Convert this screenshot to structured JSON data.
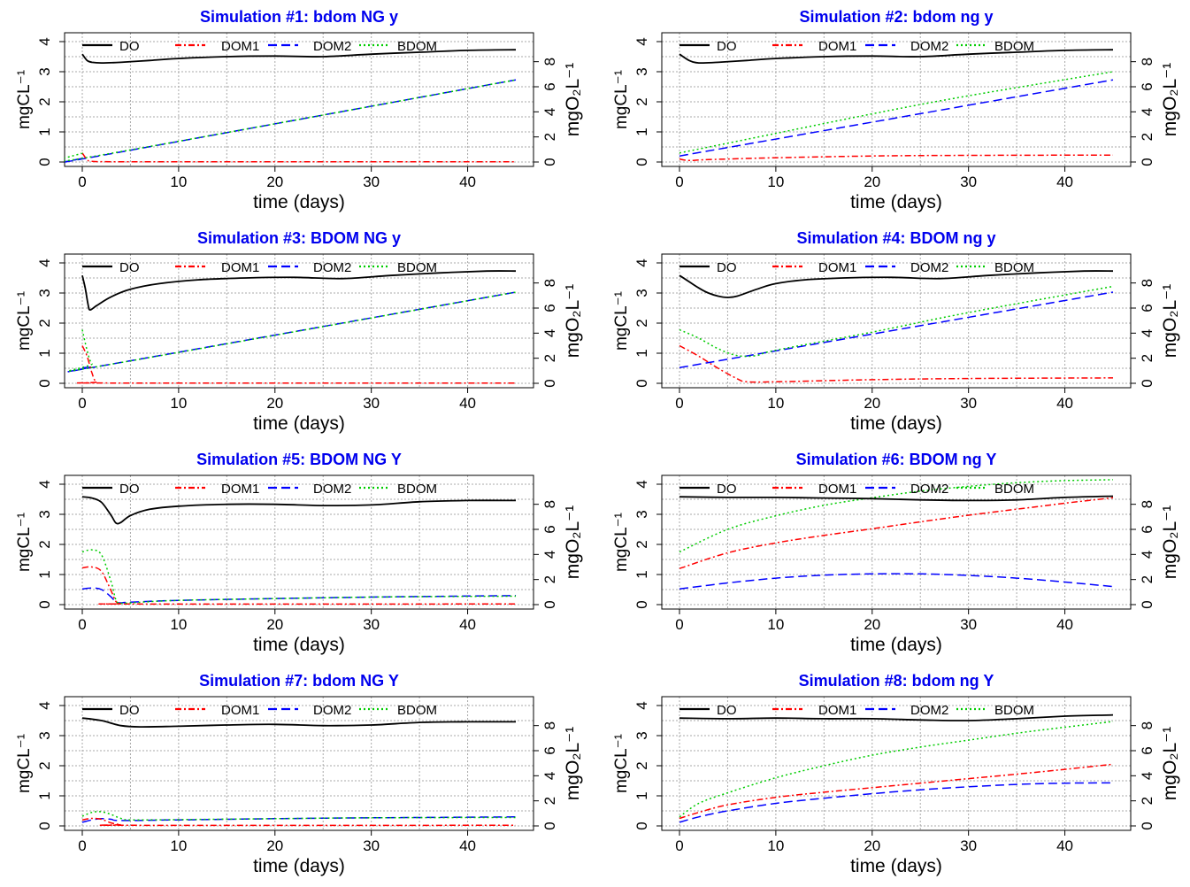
{
  "figure": {
    "legend_labels": [
      "DO",
      "DOM1",
      "DOM2",
      "BDOM"
    ],
    "xlabel": "time (days)",
    "ylabel_left": "mgCL⁻¹",
    "ylabel_right": "mgO₂L⁻¹",
    "colors": {
      "DO": "#000000",
      "DOM1": "#ff0000",
      "DOM2": "#0000ff",
      "BDOM": "#00cc00",
      "title": "#0000ee",
      "grid": "#aaaaaa"
    }
  },
  "chart_data": [
    {
      "type": "line",
      "title": "Simulation #1: bdom NG y",
      "xlabel": "time (days)",
      "ylabel": "mgCL⁻¹",
      "ylabel_right": "mgO₂L⁻¹",
      "xlim": [
        0,
        45
      ],
      "ylim": [
        0,
        4
      ],
      "ylim_right": [
        0,
        9.6
      ],
      "x_ticks": [
        0,
        10,
        20,
        30,
        40
      ],
      "y_ticks": [
        0,
        1,
        2,
        3,
        4
      ],
      "y_ticks_right": [
        0,
        2,
        4,
        6,
        8
      ],
      "legend": [
        "DO",
        "DOM1",
        "DOM2",
        "BDOM"
      ],
      "series": [
        {
          "name": "DO",
          "axis": "right",
          "x": [
            0,
            0.5,
            1,
            2,
            4,
            7,
            10,
            15,
            20,
            25,
            30,
            35,
            40,
            45
          ],
          "values": [
            8.6,
            8.1,
            7.95,
            7.9,
            7.95,
            8.1,
            8.25,
            8.4,
            8.45,
            8.4,
            8.6,
            8.75,
            8.9,
            8.95
          ]
        },
        {
          "name": "DOM1",
          "axis": "left",
          "x": [
            0,
            0.5,
            1,
            3,
            10,
            20,
            30,
            45
          ],
          "values": [
            0.3,
            0.08,
            0.02,
            0.01,
            0.01,
            0.01,
            0.01,
            0.01
          ]
        },
        {
          "name": "DOM2",
          "axis": "left",
          "x": [
            0,
            0.5,
            45
          ],
          "values": [
            0.12,
            0.13,
            2.73
          ]
        },
        {
          "name": "BDOM",
          "axis": "left",
          "x": [
            0,
            0.5,
            45
          ],
          "values": [
            0.3,
            0.15,
            2.73
          ]
        }
      ]
    },
    {
      "type": "line",
      "title": "Simulation #2: bdom ng y",
      "xlabel": "time (days)",
      "ylabel": "mgCL⁻¹",
      "ylabel_right": "mgO₂L⁻¹",
      "xlim": [
        0,
        45
      ],
      "ylim": [
        0,
        4
      ],
      "ylim_right": [
        0,
        9.6
      ],
      "x_ticks": [
        0,
        10,
        20,
        30,
        40
      ],
      "y_ticks": [
        0,
        1,
        2,
        3,
        4
      ],
      "y_ticks_right": [
        0,
        2,
        4,
        6,
        8
      ],
      "legend": [
        "DO",
        "DOM1",
        "DOM2",
        "BDOM"
      ],
      "series": [
        {
          "name": "DO",
          "axis": "right",
          "x": [
            0,
            1,
            2,
            4,
            7,
            10,
            15,
            20,
            25,
            30,
            35,
            40,
            45
          ],
          "values": [
            8.6,
            8.1,
            7.9,
            7.95,
            8.1,
            8.25,
            8.4,
            8.45,
            8.4,
            8.6,
            8.75,
            8.9,
            8.95
          ]
        },
        {
          "name": "DOM1",
          "axis": "left",
          "x": [
            0,
            1,
            3,
            10,
            20,
            30,
            45
          ],
          "values": [
            0.1,
            0.05,
            0.08,
            0.14,
            0.2,
            0.22,
            0.23
          ]
        },
        {
          "name": "DOM2",
          "axis": "left",
          "x": [
            0,
            45
          ],
          "values": [
            0.2,
            2.73
          ]
        },
        {
          "name": "BDOM",
          "axis": "left",
          "x": [
            0,
            10,
            20,
            30,
            45
          ],
          "values": [
            0.3,
            0.95,
            1.6,
            2.2,
            3.0
          ]
        }
      ]
    },
    {
      "type": "line",
      "title": "Simulation #3: BDOM NG y",
      "xlabel": "time (days)",
      "ylabel": "mgCL⁻¹",
      "ylabel_right": "mgO₂L⁻¹",
      "xlim": [
        0,
        45
      ],
      "ylim": [
        0,
        4
      ],
      "ylim_right": [
        0,
        9.6
      ],
      "x_ticks": [
        0,
        10,
        20,
        30,
        40
      ],
      "y_ticks": [
        0,
        1,
        2,
        3,
        4
      ],
      "y_ticks_right": [
        0,
        2,
        4,
        6,
        8
      ],
      "legend": [
        "DO",
        "DOM1",
        "DOM2",
        "BDOM"
      ],
      "series": [
        {
          "name": "DO",
          "axis": "right",
          "x": [
            0,
            0.3,
            0.6,
            0.8,
            1.5,
            3,
            5,
            8,
            12,
            17,
            22,
            27,
            32,
            37,
            42,
            45
          ],
          "values": [
            8.6,
            7.6,
            6.3,
            5.85,
            6.2,
            6.9,
            7.5,
            7.95,
            8.25,
            8.4,
            8.45,
            8.35,
            8.6,
            8.8,
            8.95,
            8.95
          ]
        },
        {
          "name": "DOM1",
          "axis": "left",
          "x": [
            0,
            0.5,
            1,
            1.5,
            3,
            45
          ],
          "values": [
            1.25,
            0.9,
            0.35,
            0.05,
            0.01,
            0.01
          ]
        },
        {
          "name": "DOM2",
          "axis": "left",
          "x": [
            0,
            1,
            2,
            45
          ],
          "values": [
            0.52,
            0.54,
            0.58,
            3.03
          ]
        },
        {
          "name": "BDOM",
          "axis": "left",
          "x": [
            0,
            0.5,
            1,
            2,
            45
          ],
          "values": [
            1.78,
            1.1,
            0.65,
            0.58,
            3.03
          ]
        }
      ]
    },
    {
      "type": "line",
      "title": "Simulation #4: BDOM ng y",
      "xlabel": "time (days)",
      "ylabel": "mgCL⁻¹",
      "ylabel_right": "mgO₂L⁻¹",
      "xlim": [
        0,
        45
      ],
      "ylim": [
        0,
        4
      ],
      "ylim_right": [
        0,
        9.6
      ],
      "x_ticks": [
        0,
        10,
        20,
        30,
        40
      ],
      "y_ticks": [
        0,
        1,
        2,
        3,
        4
      ],
      "y_ticks_right": [
        0,
        2,
        4,
        6,
        8
      ],
      "legend": [
        "DO",
        "DOM1",
        "DOM2",
        "BDOM"
      ],
      "series": [
        {
          "name": "DO",
          "axis": "right",
          "x": [
            0,
            1,
            2,
            3,
            4,
            5,
            6,
            8,
            10,
            13,
            17,
            22,
            27,
            32,
            37,
            42,
            45
          ],
          "values": [
            8.6,
            8.1,
            7.6,
            7.2,
            6.95,
            6.85,
            6.95,
            7.5,
            7.95,
            8.25,
            8.4,
            8.45,
            8.35,
            8.6,
            8.8,
            8.95,
            8.95
          ]
        },
        {
          "name": "DOM1",
          "axis": "left",
          "x": [
            0,
            2,
            4,
            6,
            7,
            10,
            20,
            30,
            45
          ],
          "values": [
            1.25,
            0.9,
            0.5,
            0.15,
            0.05,
            0.05,
            0.12,
            0.16,
            0.18
          ]
        },
        {
          "name": "DOM2",
          "axis": "left",
          "x": [
            0,
            45
          ],
          "values": [
            0.52,
            3.03
          ]
        },
        {
          "name": "BDOM",
          "axis": "left",
          "x": [
            0,
            2,
            4,
            6,
            8,
            10,
            20,
            30,
            45
          ],
          "values": [
            1.78,
            1.5,
            1.15,
            0.92,
            0.92,
            1.1,
            1.7,
            2.35,
            3.22
          ]
        }
      ]
    },
    {
      "type": "line",
      "title": "Simulation #5: BDOM NG Y",
      "xlabel": "time (days)",
      "ylabel": "mgCL⁻¹",
      "ylabel_right": "mgO₂L⁻¹",
      "xlim": [
        0,
        45
      ],
      "ylim": [
        0,
        4
      ],
      "ylim_right": [
        0,
        9.6
      ],
      "x_ticks": [
        0,
        10,
        20,
        30,
        40
      ],
      "y_ticks": [
        0,
        1,
        2,
        3,
        4
      ],
      "y_ticks_right": [
        0,
        2,
        4,
        6,
        8
      ],
      "legend": [
        "DO",
        "DOM1",
        "DOM2",
        "BDOM"
      ],
      "series": [
        {
          "name": "DO",
          "axis": "right",
          "x": [
            0,
            1,
            2,
            3,
            3.5,
            4,
            5,
            7,
            10,
            15,
            20,
            25,
            30,
            35,
            40,
            45
          ],
          "values": [
            8.6,
            8.5,
            8.15,
            7.1,
            6.5,
            6.55,
            7.1,
            7.6,
            7.85,
            8.0,
            8.0,
            7.9,
            7.95,
            8.2,
            8.3,
            8.3
          ]
        },
        {
          "name": "DOM1",
          "axis": "left",
          "x": [
            0,
            1,
            2,
            3,
            3.5,
            4,
            5,
            45
          ],
          "values": [
            1.22,
            1.25,
            1.1,
            0.45,
            0.1,
            0.03,
            0.02,
            0.02
          ]
        },
        {
          "name": "DOM2",
          "axis": "left",
          "x": [
            0,
            1,
            2,
            3,
            3.5,
            4,
            5,
            10,
            20,
            30,
            45
          ],
          "values": [
            0.52,
            0.55,
            0.5,
            0.25,
            0.08,
            0.06,
            0.08,
            0.14,
            0.2,
            0.25,
            0.3
          ]
        },
        {
          "name": "BDOM",
          "axis": "left",
          "x": [
            0,
            1,
            2,
            3,
            3.5,
            4,
            5,
            10,
            20,
            30,
            45
          ],
          "values": [
            1.75,
            1.82,
            1.65,
            0.75,
            0.15,
            0.05,
            0.06,
            0.14,
            0.2,
            0.25,
            0.28
          ]
        }
      ]
    },
    {
      "type": "line",
      "title": "Simulation #6: BDOM ng Y",
      "xlabel": "time (days)",
      "ylabel": "mgCL⁻¹",
      "ylabel_right": "mgO₂L⁻¹",
      "xlim": [
        0,
        45
      ],
      "ylim": [
        0,
        4
      ],
      "ylim_right": [
        0,
        9.6
      ],
      "x_ticks": [
        0,
        10,
        20,
        30,
        40
      ],
      "y_ticks": [
        0,
        1,
        2,
        3,
        4
      ],
      "y_ticks_right": [
        0,
        2,
        4,
        6,
        8
      ],
      "legend": [
        "DO",
        "DOM1",
        "DOM2",
        "BDOM"
      ],
      "series": [
        {
          "name": "DO",
          "axis": "right",
          "x": [
            0,
            5,
            10,
            15,
            20,
            25,
            30,
            35,
            40,
            45
          ],
          "values": [
            8.6,
            8.55,
            8.55,
            8.5,
            8.45,
            8.35,
            8.3,
            8.35,
            8.55,
            8.65
          ]
        },
        {
          "name": "DOM1",
          "axis": "left",
          "x": [
            0,
            5,
            10,
            15,
            20,
            25,
            30,
            35,
            40,
            45
          ],
          "values": [
            1.2,
            1.72,
            2.05,
            2.3,
            2.52,
            2.75,
            2.97,
            3.17,
            3.37,
            3.55
          ]
        },
        {
          "name": "DOM2",
          "axis": "left",
          "x": [
            0,
            5,
            10,
            15,
            20,
            25,
            30,
            35,
            40,
            45
          ],
          "values": [
            0.52,
            0.72,
            0.88,
            0.98,
            1.02,
            1.02,
            0.97,
            0.88,
            0.75,
            0.6
          ]
        },
        {
          "name": "BDOM",
          "axis": "left",
          "x": [
            0,
            5,
            10,
            15,
            20,
            25,
            30,
            35,
            40,
            45
          ],
          "values": [
            1.75,
            2.5,
            2.95,
            3.3,
            3.55,
            3.77,
            3.93,
            4.05,
            4.12,
            4.15
          ]
        }
      ]
    },
    {
      "type": "line",
      "title": "Simulation #7: bdom NG Y",
      "xlabel": "time (days)",
      "ylabel": "mgCL⁻¹",
      "ylabel_right": "mgO₂L⁻¹",
      "xlim": [
        0,
        45
      ],
      "ylim": [
        0,
        4
      ],
      "ylim_right": [
        0,
        9.6
      ],
      "x_ticks": [
        0,
        10,
        20,
        30,
        40
      ],
      "y_ticks": [
        0,
        1,
        2,
        3,
        4
      ],
      "y_ticks_right": [
        0,
        2,
        4,
        6,
        8
      ],
      "legend": [
        "DO",
        "DOM1",
        "DOM2",
        "BDOM"
      ],
      "series": [
        {
          "name": "DO",
          "axis": "right",
          "x": [
            0,
            2,
            4,
            6,
            10,
            15,
            20,
            25,
            30,
            35,
            40,
            45
          ],
          "values": [
            8.6,
            8.4,
            8.0,
            7.9,
            7.95,
            8.05,
            8.1,
            8.0,
            8.05,
            8.25,
            8.3,
            8.3
          ]
        },
        {
          "name": "DOM1",
          "axis": "left",
          "x": [
            0,
            1,
            2,
            3,
            4,
            5,
            45
          ],
          "values": [
            0.2,
            0.25,
            0.22,
            0.1,
            0.04,
            0.02,
            0.02
          ]
        },
        {
          "name": "DOM2",
          "axis": "left",
          "x": [
            0,
            1,
            2,
            3,
            4,
            10,
            20,
            30,
            45
          ],
          "values": [
            0.12,
            0.2,
            0.24,
            0.22,
            0.18,
            0.2,
            0.24,
            0.27,
            0.3
          ]
        },
        {
          "name": "BDOM",
          "axis": "left",
          "x": [
            0,
            1,
            2,
            3,
            4,
            5,
            10,
            20,
            30,
            45
          ],
          "values": [
            0.32,
            0.45,
            0.47,
            0.38,
            0.25,
            0.2,
            0.21,
            0.24,
            0.27,
            0.28
          ]
        }
      ]
    },
    {
      "type": "line",
      "title": "Simulation #8: bdom ng Y",
      "xlabel": "time (days)",
      "ylabel": "mgCL⁻¹",
      "ylabel_right": "mgO₂L⁻¹",
      "xlim": [
        0,
        45
      ],
      "ylim": [
        0,
        4
      ],
      "ylim_right": [
        0,
        9.6
      ],
      "x_ticks": [
        0,
        10,
        20,
        30,
        40
      ],
      "y_ticks": [
        0,
        1,
        2,
        3,
        4
      ],
      "y_ticks_right": [
        0,
        2,
        4,
        6,
        8
      ],
      "legend": [
        "DO",
        "DOM1",
        "DOM2",
        "BDOM"
      ],
      "series": [
        {
          "name": "DO",
          "axis": "right",
          "x": [
            0,
            5,
            10,
            15,
            20,
            25,
            30,
            35,
            40,
            45
          ],
          "values": [
            8.6,
            8.55,
            8.6,
            8.55,
            8.55,
            8.45,
            8.4,
            8.55,
            8.75,
            8.85
          ]
        },
        {
          "name": "DOM1",
          "axis": "left",
          "x": [
            0,
            2,
            5,
            10,
            15,
            20,
            25,
            30,
            35,
            40,
            45
          ],
          "values": [
            0.25,
            0.45,
            0.7,
            0.95,
            1.12,
            1.27,
            1.42,
            1.57,
            1.72,
            1.88,
            2.05
          ]
        },
        {
          "name": "DOM2",
          "axis": "left",
          "x": [
            0,
            2,
            5,
            10,
            15,
            20,
            25,
            30,
            35,
            40,
            45
          ],
          "values": [
            0.12,
            0.3,
            0.5,
            0.75,
            0.92,
            1.07,
            1.2,
            1.3,
            1.38,
            1.42,
            1.43
          ]
        },
        {
          "name": "BDOM",
          "axis": "left",
          "x": [
            0,
            2,
            5,
            10,
            15,
            20,
            25,
            30,
            35,
            40,
            45
          ],
          "values": [
            0.3,
            0.75,
            1.1,
            1.6,
            2.0,
            2.35,
            2.62,
            2.85,
            3.08,
            3.28,
            3.47
          ]
        }
      ]
    }
  ]
}
